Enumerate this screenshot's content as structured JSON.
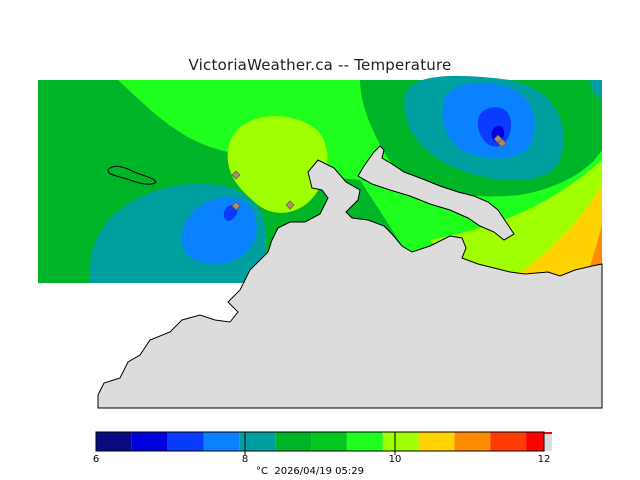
{
  "title": "VictoriaWeather.ca -- Temperature",
  "scale": {
    "unit": "°C",
    "timestamp": "2026/04/19 05:29",
    "ticks": [
      "6",
      "8",
      "10",
      "12"
    ],
    "colors": [
      "#0a0a82",
      "#0000dc",
      "#0a3cff",
      "#0a82ff",
      "#00a0a0",
      "#00b428",
      "#00c81e",
      "#1eff1e",
      "#a0ff00",
      "#ffd200",
      "#ff8c00",
      "#ff3c00",
      "#ff0000"
    ]
  },
  "map": {
    "land_color": "#dcdcdc",
    "station_marker_color": "#b48c64"
  }
}
